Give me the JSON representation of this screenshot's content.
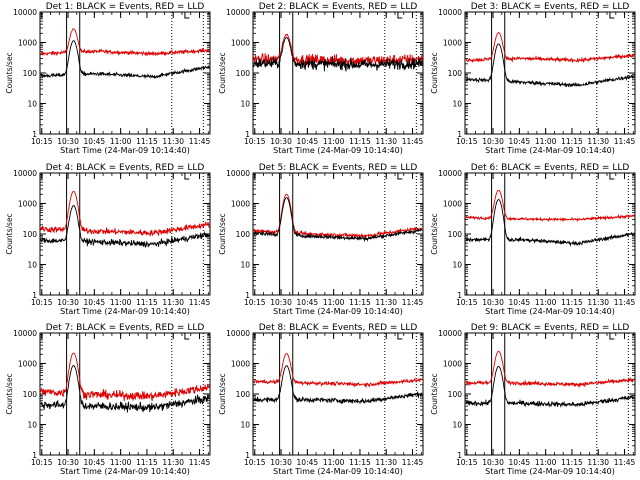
{
  "colors": {
    "events": "#000000",
    "lld": "#e00000",
    "frame": "#000000",
    "background": "#ffffff"
  },
  "panels": [
    {
      "title": "Det  1: BLACK = Events, RED = LLD",
      "base_lld": 480,
      "base_ev": 90,
      "peak_lld": 2800,
      "peak_ev": 1150,
      "noise_lld": 0.03,
      "noise_ev": 0.03,
      "lld_trend": [
        -0.05,
        0.03,
        -0.05,
        0.06
      ],
      "ev_trend": [
        -0.05,
        0.02,
        -0.08,
        0.25
      ]
    },
    {
      "title": "Det  2: BLACK = Events, RED = LLD",
      "base_lld": 270,
      "base_ev": 200,
      "peak_lld": 1850,
      "peak_ev": 1450,
      "noise_lld": 0.09,
      "noise_ev": 0.09,
      "lld_trend": [
        0.02,
        0.0,
        -0.03,
        0.02
      ],
      "ev_trend": [
        0.02,
        0.0,
        -0.03,
        0.02
      ]
    },
    {
      "title": "Det  3: BLACK = Events, RED = LLD",
      "base_lld": 300,
      "base_ev": 50,
      "peak_lld": 2100,
      "peak_ev": 900,
      "noise_lld": 0.03,
      "noise_ev": 0.03,
      "lld_trend": [
        -0.05,
        0.0,
        -0.06,
        0.1
      ],
      "ev_trend": [
        0.1,
        0.0,
        -0.1,
        0.2
      ]
    },
    {
      "title": "Det  4: BLACK = Events, RED = LLD",
      "base_lld": 130,
      "base_ev": 55,
      "peak_lld": 2500,
      "peak_ev": 850,
      "noise_lld": 0.05,
      "noise_ev": 0.05,
      "lld_trend": [
        0.05,
        -0.02,
        -0.08,
        0.2
      ],
      "ev_trend": [
        0.05,
        0.0,
        -0.08,
        0.25
      ]
    },
    {
      "title": "Det  5: BLACK = Events, RED = LLD",
      "base_lld": 100,
      "base_ev": 85,
      "peak_lld": 2000,
      "peak_ev": 1550,
      "noise_lld": 0.03,
      "noise_ev": 0.03,
      "lld_trend": [
        0.1,
        0.0,
        -0.06,
        0.2
      ],
      "ev_trend": [
        0.1,
        0.0,
        -0.08,
        0.2
      ]
    },
    {
      "title": "Det  6: BLACK = Events, RED = LLD",
      "base_lld": 310,
      "base_ev": 65,
      "peak_lld": 2700,
      "peak_ev": 1350,
      "noise_lld": 0.02,
      "noise_ev": 0.03,
      "lld_trend": [
        0.05,
        0.0,
        -0.02,
        0.1
      ],
      "ev_trend": [
        0.0,
        0.0,
        -0.12,
        0.2
      ]
    },
    {
      "title": "Det  7: BLACK = Events, RED = LLD",
      "base_lld": 95,
      "base_ev": 40,
      "peak_lld": 2200,
      "peak_ev": 850,
      "noise_lld": 0.07,
      "noise_ev": 0.07,
      "lld_trend": [
        0.1,
        0.0,
        -0.05,
        0.25
      ],
      "ev_trend": [
        0.05,
        0.0,
        -0.05,
        0.25
      ]
    },
    {
      "title": "Det  8: BLACK = Events, RED = LLD",
      "base_lld": 230,
      "base_ev": 65,
      "peak_lld": 2100,
      "peak_ev": 850,
      "noise_lld": 0.03,
      "noise_ev": 0.04,
      "lld_trend": [
        0.05,
        0.0,
        -0.05,
        0.1
      ],
      "ev_trend": [
        0.0,
        0.0,
        -0.05,
        0.2
      ]
    },
    {
      "title": "Det  9: BLACK = Events, RED = LLD",
      "base_lld": 230,
      "base_ev": 50,
      "peak_lld": 2500,
      "peak_ev": 800,
      "noise_lld": 0.03,
      "noise_ev": 0.04,
      "lld_trend": [
        0.0,
        0.0,
        -0.05,
        0.1
      ],
      "ev_trend": [
        0.0,
        0.0,
        -0.05,
        0.2
      ]
    }
  ],
  "chart_data": {
    "type": "line",
    "xlabel": "Start Time (24-Mar-09 10:14:40)",
    "ylabel": "Counts/sec",
    "xlim_minutes": [
      -0.67,
      96.3
    ],
    "x_tick_labels": [
      "10:15",
      "10:30",
      "10:45",
      "11:00",
      "11:15",
      "11:30",
      "11:45"
    ],
    "x_tick_minutes": [
      0.33,
      15.33,
      30.33,
      45.33,
      60.33,
      75.33,
      90.33
    ],
    "yscale": "log",
    "ylim": [
      1,
      10000
    ],
    "y_tick_labels": [
      "1",
      "10",
      "100",
      "1000",
      "10000"
    ],
    "y_tick_values": [
      1,
      10,
      100,
      1000,
      10000
    ],
    "series": [
      {
        "name": "BLACK = Events"
      },
      {
        "name": "RED = LLD"
      }
    ],
    "markers_minutes": {
      "solid": [
        14.5,
        22.0
      ],
      "dotted": [
        74.5,
        92.5
      ]
    },
    "peak_center_minutes": 18.5,
    "peak_width_minutes": 1.6
  }
}
